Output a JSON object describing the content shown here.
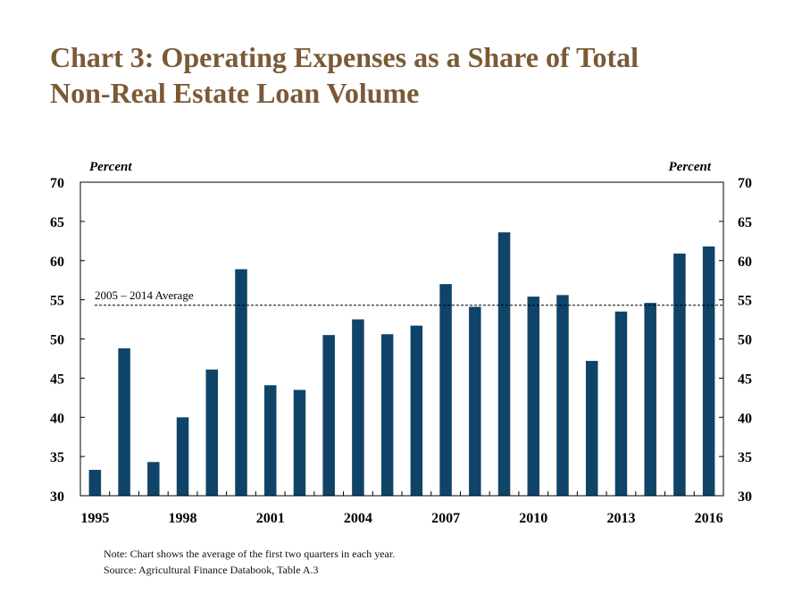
{
  "title_lines": [
    "Chart 3: Operating Expenses as a Share of Total",
    "Non-Real Estate Loan Volume"
  ],
  "colors": {
    "title": "#7a5a35",
    "bar": "#0f4468",
    "axis": "#000000"
  },
  "chart_data": {
    "type": "bar",
    "title": "Chart 3: Operating Expenses as a Share of Total Non-Real Estate Loan Volume",
    "categories": [
      "1995",
      "1996",
      "1997",
      "1998",
      "1999",
      "2000",
      "2001",
      "2002",
      "2003",
      "2004",
      "2005",
      "2006",
      "2007",
      "2008",
      "2009",
      "2010",
      "2011",
      "2012",
      "2013",
      "2014",
      "2015",
      "2016"
    ],
    "values": [
      33.3,
      48.8,
      34.3,
      40.0,
      46.1,
      58.9,
      44.1,
      43.5,
      50.5,
      52.5,
      50.6,
      51.7,
      57.0,
      54.1,
      63.6,
      55.4,
      55.6,
      47.2,
      53.5,
      54.6,
      60.9,
      61.8
    ],
    "x_tick_labels": [
      "1995",
      "1998",
      "2001",
      "2004",
      "2007",
      "2010",
      "2013",
      "2016"
    ],
    "ylabel_left": "Percent",
    "ylabel_right": "Percent",
    "ylim": [
      30,
      70
    ],
    "y_ticks": [
      30,
      35,
      40,
      45,
      50,
      55,
      60,
      65,
      70
    ],
    "reference_line": {
      "label": "2005 – 2014 Average",
      "value": 54.3,
      "style": "dashed"
    },
    "grid": false,
    "legend": "none"
  },
  "notes": {
    "note": "Note: Chart shows the average of the first two quarters in each year.",
    "source": "Source: Agricultural Finance Databook, Table A.3"
  }
}
